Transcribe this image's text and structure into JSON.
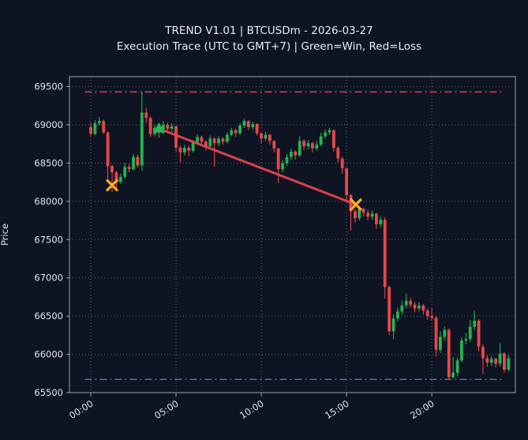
{
  "header": {
    "title": "TREND V1.01 | BTCUSDm - 2026-03-27",
    "subtitle": "Execution Trace (UTC to GMT+7) | Green=Win, Red=Loss"
  },
  "chart_data": {
    "type": "candlestick",
    "symbol": "BTCUSDm",
    "date": "2026-03-27",
    "title": "TREND V1.01 | BTCUSDm - 2026-03-27",
    "subtitle": "Execution Trace (UTC to GMT+7) | Green=Win, Red=Loss",
    "ylabel": "Price",
    "xlabel": "",
    "grid": true,
    "legend_note": "Green=Win, Red=Loss",
    "xlim": [
      -1.25,
      24.9
    ],
    "ylim": [
      65500,
      69630
    ],
    "x_ticks": [
      {
        "t": 0,
        "label": "00:00"
      },
      {
        "t": 5,
        "label": "05:00"
      },
      {
        "t": 10,
        "label": "10:00"
      },
      {
        "t": 15,
        "label": "15:00"
      },
      {
        "t": 20,
        "label": "20:00"
      }
    ],
    "y_ticks": [
      {
        "value": 65500,
        "label": "65500"
      },
      {
        "value": 66000,
        "label": "66000"
      },
      {
        "value": 66500,
        "label": "66500"
      },
      {
        "value": 67000,
        "label": "67000"
      },
      {
        "value": 67500,
        "label": "67500"
      },
      {
        "value": 68000,
        "label": "68000"
      },
      {
        "value": 68500,
        "label": "68500"
      },
      {
        "value": 69000,
        "label": "69000"
      },
      {
        "value": 69500,
        "label": "69500"
      }
    ],
    "hlines": [
      {
        "name": "upper-level-line",
        "price": 69430,
        "t1": -0.35,
        "t2": 24.1,
        "color": "#d9474f",
        "style": "dashdot"
      },
      {
        "name": "lower-level-line",
        "price": 65672,
        "t1": -0.35,
        "t2": 24.1,
        "color": "#4678c8",
        "style": "dashdot"
      }
    ],
    "trade_line": {
      "name": "trade-result-line",
      "t1": 4.0,
      "price1": 68950,
      "t2": 15.55,
      "price2": 67958,
      "color": "#e8474d",
      "result": "loss"
    },
    "markers": [
      {
        "name": "exit-x-marker-1",
        "type": "x",
        "t": 1.25,
        "price": 68210,
        "color": "#fcae1e"
      },
      {
        "name": "entry-marker",
        "type": "triangle-up",
        "t": 4.0,
        "price": 68950,
        "color": "#28b855"
      },
      {
        "name": "exit-x-marker-2",
        "type": "x",
        "t": 15.55,
        "price": 67958,
        "color": "#fcae1e"
      }
    ],
    "colors": {
      "up": "#26b350",
      "down": "#e8474d",
      "background": "#0e1422",
      "grid": "#7e8794",
      "spine": "#9aa4b2",
      "text": "#e2e6ea"
    },
    "candles": [
      [
        0.0,
        68970,
        69030,
        68850,
        68880
      ],
      [
        0.25,
        68880,
        69060,
        68860,
        69020
      ],
      [
        0.5,
        69020,
        69100,
        68990,
        69050
      ],
      [
        0.75,
        69050,
        69070,
        68880,
        68900
      ],
      [
        1.0,
        68900,
        68910,
        68290,
        68460
      ],
      [
        1.25,
        68460,
        68480,
        68120,
        68380
      ],
      [
        1.5,
        68380,
        68400,
        68140,
        68250
      ],
      [
        1.75,
        68250,
        68360,
        68230,
        68320
      ],
      [
        2.0,
        68320,
        68500,
        68300,
        68450
      ],
      [
        2.25,
        68450,
        68490,
        68380,
        68420
      ],
      [
        2.5,
        68420,
        68620,
        68400,
        68580
      ],
      [
        2.75,
        68580,
        68610,
        68440,
        68470
      ],
      [
        3.0,
        68470,
        69430,
        68400,
        69160
      ],
      [
        3.25,
        69160,
        69220,
        69020,
        69090
      ],
      [
        3.5,
        69090,
        69110,
        68840,
        68880
      ],
      [
        3.75,
        68880,
        69000,
        68850,
        68960
      ],
      [
        4.0,
        68960,
        68990,
        68830,
        68900
      ],
      [
        4.25,
        68900,
        69050,
        68880,
        69000
      ],
      [
        4.5,
        69000,
        69030,
        68900,
        68950
      ],
      [
        4.75,
        68950,
        69020,
        68910,
        68980
      ],
      [
        5.0,
        68980,
        68990,
        68650,
        68700
      ],
      [
        5.25,
        68700,
        68730,
        68510,
        68640
      ],
      [
        5.5,
        68640,
        68740,
        68600,
        68700
      ],
      [
        5.75,
        68700,
        68730,
        68590,
        68660
      ],
      [
        6.0,
        68660,
        68800,
        68640,
        68770
      ],
      [
        6.25,
        68770,
        68880,
        68740,
        68840
      ],
      [
        6.5,
        68840,
        68860,
        68730,
        68780
      ],
      [
        6.75,
        68780,
        68800,
        68660,
        68720
      ],
      [
        7.0,
        68720,
        68860,
        68700,
        68820
      ],
      [
        7.25,
        68820,
        68840,
        68450,
        68760
      ],
      [
        7.5,
        68760,
        68850,
        68720,
        68820
      ],
      [
        7.75,
        68820,
        68840,
        68740,
        68780
      ],
      [
        8.0,
        68780,
        68900,
        68760,
        68870
      ],
      [
        8.25,
        68870,
        68960,
        68850,
        68930
      ],
      [
        8.5,
        68930,
        68950,
        68840,
        68890
      ],
      [
        8.75,
        68890,
        69020,
        68870,
        68990
      ],
      [
        9.0,
        68990,
        69080,
        68960,
        69050
      ],
      [
        9.25,
        69050,
        69060,
        68930,
        68970
      ],
      [
        9.5,
        68970,
        69040,
        68940,
        69010
      ],
      [
        9.75,
        69010,
        69020,
        68860,
        68890
      ],
      [
        10.0,
        68890,
        68900,
        68760,
        68820
      ],
      [
        10.25,
        68820,
        68910,
        68790,
        68870
      ],
      [
        10.5,
        68870,
        68880,
        68740,
        68790
      ],
      [
        10.75,
        68790,
        68800,
        68640,
        68690
      ],
      [
        11.0,
        68690,
        68700,
        68240,
        68420
      ],
      [
        11.25,
        68420,
        68540,
        68380,
        68500
      ],
      [
        11.5,
        68500,
        68620,
        68460,
        68580
      ],
      [
        11.75,
        68580,
        68690,
        68540,
        68650
      ],
      [
        12.0,
        68650,
        68670,
        68550,
        68600
      ],
      [
        12.25,
        68600,
        68850,
        68580,
        68790
      ],
      [
        12.5,
        68790,
        68810,
        68670,
        68720
      ],
      [
        12.75,
        68720,
        68800,
        68680,
        68760
      ],
      [
        13.0,
        68760,
        68780,
        68640,
        68690
      ],
      [
        13.25,
        68690,
        68790,
        68660,
        68740
      ],
      [
        13.5,
        68740,
        68900,
        68720,
        68850
      ],
      [
        13.75,
        68850,
        68940,
        68820,
        68900
      ],
      [
        14.0,
        68900,
        68960,
        68870,
        68930
      ],
      [
        14.25,
        68930,
        68940,
        68650,
        68700
      ],
      [
        14.5,
        68700,
        68720,
        68510,
        68560
      ],
      [
        14.75,
        68560,
        68580,
        68360,
        68430
      ],
      [
        15.0,
        68430,
        68450,
        68020,
        68080
      ],
      [
        15.25,
        68080,
        68100,
        67620,
        67870
      ],
      [
        15.5,
        67870,
        67900,
        67720,
        67780
      ],
      [
        15.75,
        67780,
        67930,
        67750,
        67900
      ],
      [
        16.0,
        67900,
        67920,
        67800,
        67850
      ],
      [
        16.25,
        67850,
        67890,
        67750,
        67800
      ],
      [
        16.5,
        67800,
        67880,
        67760,
        67840
      ],
      [
        16.75,
        67840,
        67850,
        67640,
        67700
      ],
      [
        17.0,
        67700,
        67800,
        67660,
        67760
      ],
      [
        17.25,
        67760,
        67790,
        66730,
        66880
      ],
      [
        17.5,
        66880,
        66900,
        66255,
        66300
      ],
      [
        17.75,
        66300,
        66520,
        66200,
        66470
      ],
      [
        18.0,
        66470,
        66610,
        66430,
        66560
      ],
      [
        18.25,
        66560,
        66700,
        66520,
        66640
      ],
      [
        18.5,
        66640,
        66790,
        66600,
        66700
      ],
      [
        18.75,
        66700,
        66740,
        66610,
        66650
      ],
      [
        19.0,
        66650,
        66690,
        66550,
        66600
      ],
      [
        19.25,
        66600,
        66680,
        66560,
        66640
      ],
      [
        19.5,
        66640,
        66660,
        66520,
        66570
      ],
      [
        19.75,
        66570,
        66600,
        66450,
        66500
      ],
      [
        20.0,
        66500,
        66600,
        66440,
        66480
      ],
      [
        20.25,
        66480,
        66500,
        65970,
        66060
      ],
      [
        20.5,
        66060,
        66300,
        66020,
        66230
      ],
      [
        20.75,
        66230,
        66360,
        66180,
        66320
      ],
      [
        21.0,
        66320,
        66340,
        65672,
        65700
      ],
      [
        21.25,
        65700,
        65970,
        65685,
        65760
      ],
      [
        21.5,
        65760,
        65960,
        65710,
        65920
      ],
      [
        21.75,
        65920,
        66220,
        65900,
        66180
      ],
      [
        22.0,
        66180,
        66280,
        66130,
        66200
      ],
      [
        22.25,
        66200,
        66450,
        66160,
        66360
      ],
      [
        22.5,
        66360,
        66570,
        66320,
        66440
      ],
      [
        22.75,
        66440,
        66460,
        66040,
        66100
      ],
      [
        23.0,
        66100,
        66130,
        65745,
        65950
      ],
      [
        23.25,
        65950,
        65990,
        65840,
        65890
      ],
      [
        23.5,
        65890,
        65980,
        65850,
        65940
      ],
      [
        23.75,
        65940,
        65960,
        65830,
        65880
      ],
      [
        24.0,
        65880,
        66145,
        65840,
        66010
      ],
      [
        24.25,
        66010,
        66030,
        65760,
        65800
      ],
      [
        24.5,
        65800,
        65990,
        65780,
        65950
      ]
    ]
  }
}
